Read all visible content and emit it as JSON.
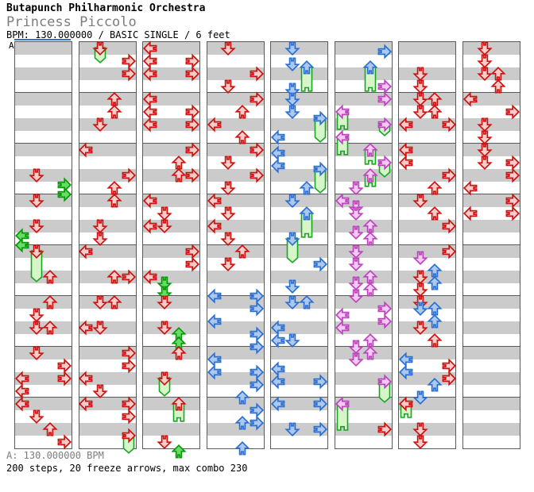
{
  "header": {
    "artist": "Butapunch Philharmonic Orchestra",
    "title": "Princess Piccolo",
    "meta": "BPM: 130.000000 / BASIC SINGLE / 6 feet"
  },
  "section_label": "A",
  "footer": {
    "bpm_line": "A: 130.000000 BPM",
    "stats_line": "200 steps, 20 freeze arrows, max combo 230"
  },
  "colors": {
    "red_stroke": "#cc1111",
    "red_fill": "#f9cbcb",
    "blue_stroke": "#2c6fd2",
    "blue_fill": "#abc9ef",
    "violet_stroke": "#bb44bb",
    "violet_fill": "#f4c9f4",
    "green_stroke": "#089908",
    "green_fill": "#66dd66",
    "freeze_tail_stroke": "#17a523",
    "freeze_tail_fill": "#d6f6c9",
    "band_gray": "#cbcbcb",
    "grid_line": "#5a5a5a",
    "section_marker_blue": "#2f6fd0"
  },
  "lanes": [
    "left",
    "down",
    "up",
    "right"
  ],
  "beats_per_column": 32,
  "columns": [
    {
      "notes": [
        {
          "t": 10,
          "l": 1,
          "c": "red"
        },
        {
          "t": 10.75,
          "l": 3,
          "c": "green"
        },
        {
          "t": 11.5,
          "l": 3,
          "c": "green"
        },
        {
          "t": 12,
          "l": 1,
          "c": "red"
        },
        {
          "t": 14,
          "l": 1,
          "c": "red"
        },
        {
          "t": 14.75,
          "l": 0,
          "c": "green"
        },
        {
          "t": 15.5,
          "l": 0,
          "c": "green"
        },
        {
          "t": 16,
          "l": 1,
          "c": "red",
          "f": 2.5
        },
        {
          "t": 18,
          "l": 2,
          "c": "red"
        },
        {
          "t": 20,
          "l": 2,
          "c": "red"
        },
        {
          "t": 21,
          "l": 1,
          "c": "red"
        },
        {
          "t": 22,
          "l": 1,
          "c": "red"
        },
        {
          "t": 22,
          "l": 2,
          "c": "red"
        },
        {
          "t": 24,
          "l": 1,
          "c": "red"
        },
        {
          "t": 25,
          "l": 3,
          "c": "red"
        },
        {
          "t": 26,
          "l": 0,
          "c": "red"
        },
        {
          "t": 26,
          "l": 3,
          "c": "red"
        },
        {
          "t": 27,
          "l": 0,
          "c": "red"
        },
        {
          "t": 28,
          "l": 0,
          "c": "red"
        },
        {
          "t": 29,
          "l": 1,
          "c": "red"
        },
        {
          "t": 30,
          "l": 2,
          "c": "red"
        },
        {
          "t": 31,
          "l": 3,
          "c": "red"
        }
      ]
    },
    {
      "notes": [
        {
          "t": 0,
          "l": 1,
          "c": "red",
          "f": 1.25
        },
        {
          "t": 1,
          "l": 3,
          "c": "red"
        },
        {
          "t": 2,
          "l": 3,
          "c": "red"
        },
        {
          "t": 4,
          "l": 2,
          "c": "red"
        },
        {
          "t": 5,
          "l": 2,
          "c": "red"
        },
        {
          "t": 6,
          "l": 1,
          "c": "red"
        },
        {
          "t": 8,
          "l": 0,
          "c": "red"
        },
        {
          "t": 10,
          "l": 3,
          "c": "red"
        },
        {
          "t": 11,
          "l": 2,
          "c": "red"
        },
        {
          "t": 12,
          "l": 2,
          "c": "red"
        },
        {
          "t": 14,
          "l": 1,
          "c": "red"
        },
        {
          "t": 15,
          "l": 1,
          "c": "red"
        },
        {
          "t": 16,
          "l": 0,
          "c": "red"
        },
        {
          "t": 18,
          "l": 2,
          "c": "red"
        },
        {
          "t": 18,
          "l": 3,
          "c": "red"
        },
        {
          "t": 20,
          "l": 1,
          "c": "red"
        },
        {
          "t": 20,
          "l": 2,
          "c": "red"
        },
        {
          "t": 22,
          "l": 0,
          "c": "red"
        },
        {
          "t": 22,
          "l": 1,
          "c": "red"
        },
        {
          "t": 24,
          "l": 3,
          "c": "red"
        },
        {
          "t": 25,
          "l": 3,
          "c": "red"
        },
        {
          "t": 26,
          "l": 0,
          "c": "red"
        },
        {
          "t": 27,
          "l": 1,
          "c": "red"
        },
        {
          "t": 28,
          "l": 0,
          "c": "red"
        },
        {
          "t": 28,
          "l": 3,
          "c": "red"
        },
        {
          "t": 29,
          "l": 3,
          "c": "red"
        },
        {
          "t": 30.5,
          "l": 3,
          "c": "red",
          "f": 1.5
        }
      ]
    },
    {
      "notes": [
        {
          "t": 0,
          "l": 0,
          "c": "red"
        },
        {
          "t": 1,
          "l": 0,
          "c": "red"
        },
        {
          "t": 1,
          "l": 3,
          "c": "red"
        },
        {
          "t": 2,
          "l": 0,
          "c": "red"
        },
        {
          "t": 2,
          "l": 3,
          "c": "red"
        },
        {
          "t": 4,
          "l": 0,
          "c": "red"
        },
        {
          "t": 5,
          "l": 0,
          "c": "red"
        },
        {
          "t": 5,
          "l": 3,
          "c": "red"
        },
        {
          "t": 6,
          "l": 0,
          "c": "red"
        },
        {
          "t": 6,
          "l": 3,
          "c": "red"
        },
        {
          "t": 8,
          "l": 3,
          "c": "red"
        },
        {
          "t": 9,
          "l": 2,
          "c": "red"
        },
        {
          "t": 10,
          "l": 2,
          "c": "red"
        },
        {
          "t": 10,
          "l": 3,
          "c": "red"
        },
        {
          "t": 12,
          "l": 0,
          "c": "red"
        },
        {
          "t": 13,
          "l": 1,
          "c": "red"
        },
        {
          "t": 14,
          "l": 0,
          "c": "red"
        },
        {
          "t": 14,
          "l": 1,
          "c": "red"
        },
        {
          "t": 16,
          "l": 3,
          "c": "red"
        },
        {
          "t": 17,
          "l": 3,
          "c": "red"
        },
        {
          "t": 18,
          "l": 0,
          "c": "red"
        },
        {
          "t": 18.5,
          "l": 1,
          "c": "green"
        },
        {
          "t": 19.25,
          "l": 1,
          "c": "green"
        },
        {
          "t": 20,
          "l": 1,
          "c": "red"
        },
        {
          "t": 22,
          "l": 1,
          "c": "red"
        },
        {
          "t": 22.5,
          "l": 2,
          "c": "green"
        },
        {
          "t": 23.25,
          "l": 2,
          "c": "green"
        },
        {
          "t": 24,
          "l": 2,
          "c": "red"
        },
        {
          "t": 26,
          "l": 1,
          "c": "red",
          "f": 1.5
        },
        {
          "t": 28,
          "l": 2,
          "c": "red",
          "f": 1.5
        },
        {
          "t": 31,
          "l": 1,
          "c": "red"
        },
        {
          "t": 31.75,
          "l": 2,
          "c": "green"
        }
      ]
    },
    {
      "notes": [
        {
          "t": 0,
          "l": 1,
          "c": "red"
        },
        {
          "t": 2,
          "l": 3,
          "c": "red"
        },
        {
          "t": 3,
          "l": 1,
          "c": "red"
        },
        {
          "t": 4,
          "l": 3,
          "c": "red"
        },
        {
          "t": 5,
          "l": 2,
          "c": "red"
        },
        {
          "t": 6,
          "l": 0,
          "c": "red"
        },
        {
          "t": 7,
          "l": 2,
          "c": "red"
        },
        {
          "t": 8,
          "l": 3,
          "c": "red"
        },
        {
          "t": 9,
          "l": 1,
          "c": "red"
        },
        {
          "t": 10,
          "l": 3,
          "c": "red"
        },
        {
          "t": 11,
          "l": 1,
          "c": "red"
        },
        {
          "t": 12,
          "l": 0,
          "c": "red"
        },
        {
          "t": 13,
          "l": 1,
          "c": "red"
        },
        {
          "t": 14,
          "l": 0,
          "c": "red"
        },
        {
          "t": 15,
          "l": 1,
          "c": "red"
        },
        {
          "t": 16,
          "l": 2,
          "c": "red"
        },
        {
          "t": 17,
          "l": 1,
          "c": "red"
        },
        {
          "t": 19.5,
          "l": 0,
          "c": "blue"
        },
        {
          "t": 19.5,
          "l": 3,
          "c": "blue"
        },
        {
          "t": 20.5,
          "l": 3,
          "c": "blue"
        },
        {
          "t": 21.5,
          "l": 0,
          "c": "blue"
        },
        {
          "t": 22.5,
          "l": 3,
          "c": "blue"
        },
        {
          "t": 23.5,
          "l": 3,
          "c": "blue"
        },
        {
          "t": 24.5,
          "l": 0,
          "c": "blue"
        },
        {
          "t": 25.5,
          "l": 0,
          "c": "blue"
        },
        {
          "t": 25.5,
          "l": 3,
          "c": "blue"
        },
        {
          "t": 26.5,
          "l": 3,
          "c": "blue"
        },
        {
          "t": 27.5,
          "l": 2,
          "c": "blue"
        },
        {
          "t": 28.5,
          "l": 3,
          "c": "blue"
        },
        {
          "t": 29.5,
          "l": 2,
          "c": "blue"
        },
        {
          "t": 29.5,
          "l": 3,
          "c": "blue"
        },
        {
          "t": 31.5,
          "l": 2,
          "c": "blue"
        }
      ]
    },
    {
      "notes": [
        {
          "t": 0,
          "l": 1,
          "c": "blue"
        },
        {
          "t": 1.25,
          "l": 1,
          "c": "blue"
        },
        {
          "t": 1.5,
          "l": 2,
          "c": "blue",
          "f": 2
        },
        {
          "t": 3.25,
          "l": 1,
          "c": "blue"
        },
        {
          "t": 4,
          "l": 1,
          "c": "blue"
        },
        {
          "t": 5,
          "l": 1,
          "c": "blue"
        },
        {
          "t": 5.5,
          "l": 3,
          "c": "blue",
          "f": 2
        },
        {
          "t": 7,
          "l": 0,
          "c": "blue"
        },
        {
          "t": 8.25,
          "l": 0,
          "c": "blue"
        },
        {
          "t": 9.25,
          "l": 0,
          "c": "blue"
        },
        {
          "t": 9.5,
          "l": 3,
          "c": "blue",
          "f": 2
        },
        {
          "t": 11,
          "l": 2,
          "c": "blue"
        },
        {
          "t": 12,
          "l": 1,
          "c": "blue"
        },
        {
          "t": 13,
          "l": 2,
          "c": "blue",
          "f": 2
        },
        {
          "t": 15,
          "l": 1,
          "c": "blue",
          "f": 2
        },
        {
          "t": 17,
          "l": 3,
          "c": "blue"
        },
        {
          "t": 18.75,
          "l": 1,
          "c": "blue"
        },
        {
          "t": 20,
          "l": 1,
          "c": "blue"
        },
        {
          "t": 20,
          "l": 2,
          "c": "blue"
        },
        {
          "t": 22,
          "l": 0,
          "c": "blue"
        },
        {
          "t": 23,
          "l": 0,
          "c": "blue"
        },
        {
          "t": 23,
          "l": 1,
          "c": "blue"
        },
        {
          "t": 25.25,
          "l": 0,
          "c": "blue"
        },
        {
          "t": 26.25,
          "l": 0,
          "c": "blue"
        },
        {
          "t": 26.25,
          "l": 3,
          "c": "blue"
        },
        {
          "t": 28,
          "l": 0,
          "c": "blue"
        },
        {
          "t": 28,
          "l": 3,
          "c": "blue"
        },
        {
          "t": 30,
          "l": 1,
          "c": "blue"
        },
        {
          "t": 30,
          "l": 3,
          "c": "blue"
        }
      ]
    },
    {
      "notes": [
        {
          "t": 0.25,
          "l": 3,
          "c": "blue"
        },
        {
          "t": 1.5,
          "l": 2,
          "c": "blue",
          "f": 2
        },
        {
          "t": 3,
          "l": 3,
          "c": "violet"
        },
        {
          "t": 4,
          "l": 3,
          "c": "violet"
        },
        {
          "t": 5,
          "l": 0,
          "c": "violet",
          "f": 1.5
        },
        {
          "t": 6,
          "l": 3,
          "c": "violet",
          "f": 1
        },
        {
          "t": 7,
          "l": 0,
          "c": "violet",
          "f": 1.5
        },
        {
          "t": 8,
          "l": 2,
          "c": "violet",
          "f": 1.25
        },
        {
          "t": 9,
          "l": 3,
          "c": "violet",
          "f": 1.25
        },
        {
          "t": 10,
          "l": 2,
          "c": "violet",
          "f": 1
        },
        {
          "t": 11,
          "l": 1,
          "c": "violet"
        },
        {
          "t": 12,
          "l": 0,
          "c": "violet"
        },
        {
          "t": 12.5,
          "l": 1,
          "c": "violet"
        },
        {
          "t": 13,
          "l": 1,
          "c": "violet"
        },
        {
          "t": 14,
          "l": 2,
          "c": "violet"
        },
        {
          "t": 14.5,
          "l": 1,
          "c": "violet"
        },
        {
          "t": 15,
          "l": 2,
          "c": "violet"
        },
        {
          "t": 16,
          "l": 1,
          "c": "violet"
        },
        {
          "t": 17,
          "l": 1,
          "c": "violet"
        },
        {
          "t": 18,
          "l": 2,
          "c": "violet"
        },
        {
          "t": 18.5,
          "l": 1,
          "c": "violet"
        },
        {
          "t": 19,
          "l": 2,
          "c": "violet"
        },
        {
          "t": 19.5,
          "l": 1,
          "c": "violet"
        },
        {
          "t": 20.5,
          "l": 3,
          "c": "violet"
        },
        {
          "t": 21,
          "l": 0,
          "c": "violet"
        },
        {
          "t": 21.5,
          "l": 3,
          "c": "violet"
        },
        {
          "t": 22,
          "l": 0,
          "c": "violet"
        },
        {
          "t": 23,
          "l": 2,
          "c": "violet"
        },
        {
          "t": 23.5,
          "l": 1,
          "c": "violet"
        },
        {
          "t": 24,
          "l": 2,
          "c": "violet"
        },
        {
          "t": 24.5,
          "l": 1,
          "c": "violet"
        },
        {
          "t": 26.25,
          "l": 3,
          "c": "violet",
          "f": 1.75
        },
        {
          "t": 28,
          "l": 0,
          "c": "violet",
          "f": 2.2
        },
        {
          "t": 30,
          "l": 3,
          "c": "red"
        }
      ]
    },
    {
      "notes": [
        {
          "t": 2,
          "l": 1,
          "c": "red"
        },
        {
          "t": 3,
          "l": 1,
          "c": "red"
        },
        {
          "t": 4,
          "l": 1,
          "c": "red"
        },
        {
          "t": 4,
          "l": 2,
          "c": "red"
        },
        {
          "t": 5,
          "l": 1,
          "c": "red"
        },
        {
          "t": 5,
          "l": 2,
          "c": "red"
        },
        {
          "t": 6,
          "l": 0,
          "c": "red"
        },
        {
          "t": 6,
          "l": 3,
          "c": "red"
        },
        {
          "t": 8,
          "l": 0,
          "c": "red"
        },
        {
          "t": 9,
          "l": 0,
          "c": "red"
        },
        {
          "t": 10,
          "l": 3,
          "c": "red"
        },
        {
          "t": 11,
          "l": 2,
          "c": "red"
        },
        {
          "t": 12,
          "l": 1,
          "c": "red"
        },
        {
          "t": 13,
          "l": 2,
          "c": "red"
        },
        {
          "t": 14,
          "l": 3,
          "c": "red"
        },
        {
          "t": 16,
          "l": 3,
          "c": "red"
        },
        {
          "t": 16.5,
          "l": 1,
          "c": "violet"
        },
        {
          "t": 17.5,
          "l": 2,
          "c": "blue"
        },
        {
          "t": 18,
          "l": 1,
          "c": "red"
        },
        {
          "t": 18.5,
          "l": 2,
          "c": "blue"
        },
        {
          "t": 19,
          "l": 1,
          "c": "red"
        },
        {
          "t": 20,
          "l": 1,
          "c": "red"
        },
        {
          "t": 20.5,
          "l": 1,
          "c": "blue"
        },
        {
          "t": 20.5,
          "l": 2,
          "c": "blue"
        },
        {
          "t": 21.5,
          "l": 2,
          "c": "blue"
        },
        {
          "t": 22,
          "l": 1,
          "c": "red"
        },
        {
          "t": 23,
          "l": 2,
          "c": "red"
        },
        {
          "t": 24.5,
          "l": 0,
          "c": "blue"
        },
        {
          "t": 25,
          "l": 3,
          "c": "red"
        },
        {
          "t": 25.5,
          "l": 0,
          "c": "blue"
        },
        {
          "t": 26,
          "l": 3,
          "c": "red"
        },
        {
          "t": 26.5,
          "l": 2,
          "c": "blue"
        },
        {
          "t": 27.5,
          "l": 1,
          "c": "blue"
        },
        {
          "t": 28,
          "l": 0,
          "c": "red",
          "f": 1.2
        },
        {
          "t": 30,
          "l": 1,
          "c": "red"
        },
        {
          "t": 31,
          "l": 1,
          "c": "red"
        }
      ]
    },
    {
      "notes": [
        {
          "t": 0,
          "l": 1,
          "c": "red"
        },
        {
          "t": 1,
          "l": 1,
          "c": "red"
        },
        {
          "t": 2,
          "l": 1,
          "c": "red"
        },
        {
          "t": 2,
          "l": 2,
          "c": "red"
        },
        {
          "t": 3,
          "l": 2,
          "c": "red"
        },
        {
          "t": 4,
          "l": 0,
          "c": "red"
        },
        {
          "t": 5,
          "l": 3,
          "c": "red"
        },
        {
          "t": 6,
          "l": 1,
          "c": "red"
        },
        {
          "t": 7,
          "l": 1,
          "c": "red"
        },
        {
          "t": 8,
          "l": 1,
          "c": "red"
        },
        {
          "t": 9,
          "l": 1,
          "c": "red"
        },
        {
          "t": 9,
          "l": 3,
          "c": "red"
        },
        {
          "t": 10,
          "l": 3,
          "c": "red"
        },
        {
          "t": 11,
          "l": 0,
          "c": "red"
        },
        {
          "t": 12,
          "l": 3,
          "c": "red"
        },
        {
          "t": 13,
          "l": 0,
          "c": "red"
        },
        {
          "t": 13,
          "l": 3,
          "c": "red"
        }
      ]
    }
  ]
}
